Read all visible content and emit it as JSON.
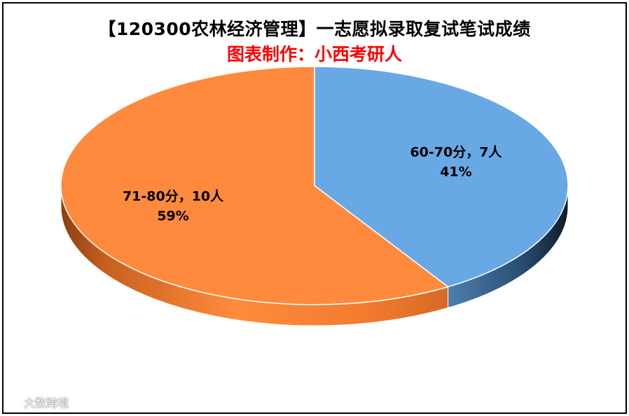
{
  "chart_data": {
    "type": "pie",
    "title": "【120300农林经济管理】一志愿拟录取复试笔试成绩",
    "subtitle": "图表制作：小西考研人",
    "style": "3d",
    "slices": [
      {
        "label": "60-70分，7人",
        "value": 7,
        "percent_label": "41%",
        "color": "#68a8e4",
        "side_color": "#2d5a84"
      },
      {
        "label": "71-80分，10人",
        "value": 10,
        "percent_label": "59%",
        "color": "#ff8a3d",
        "side_color": "#d0651d"
      }
    ]
  },
  "watermark": {
    "text": "大数跨境"
  }
}
